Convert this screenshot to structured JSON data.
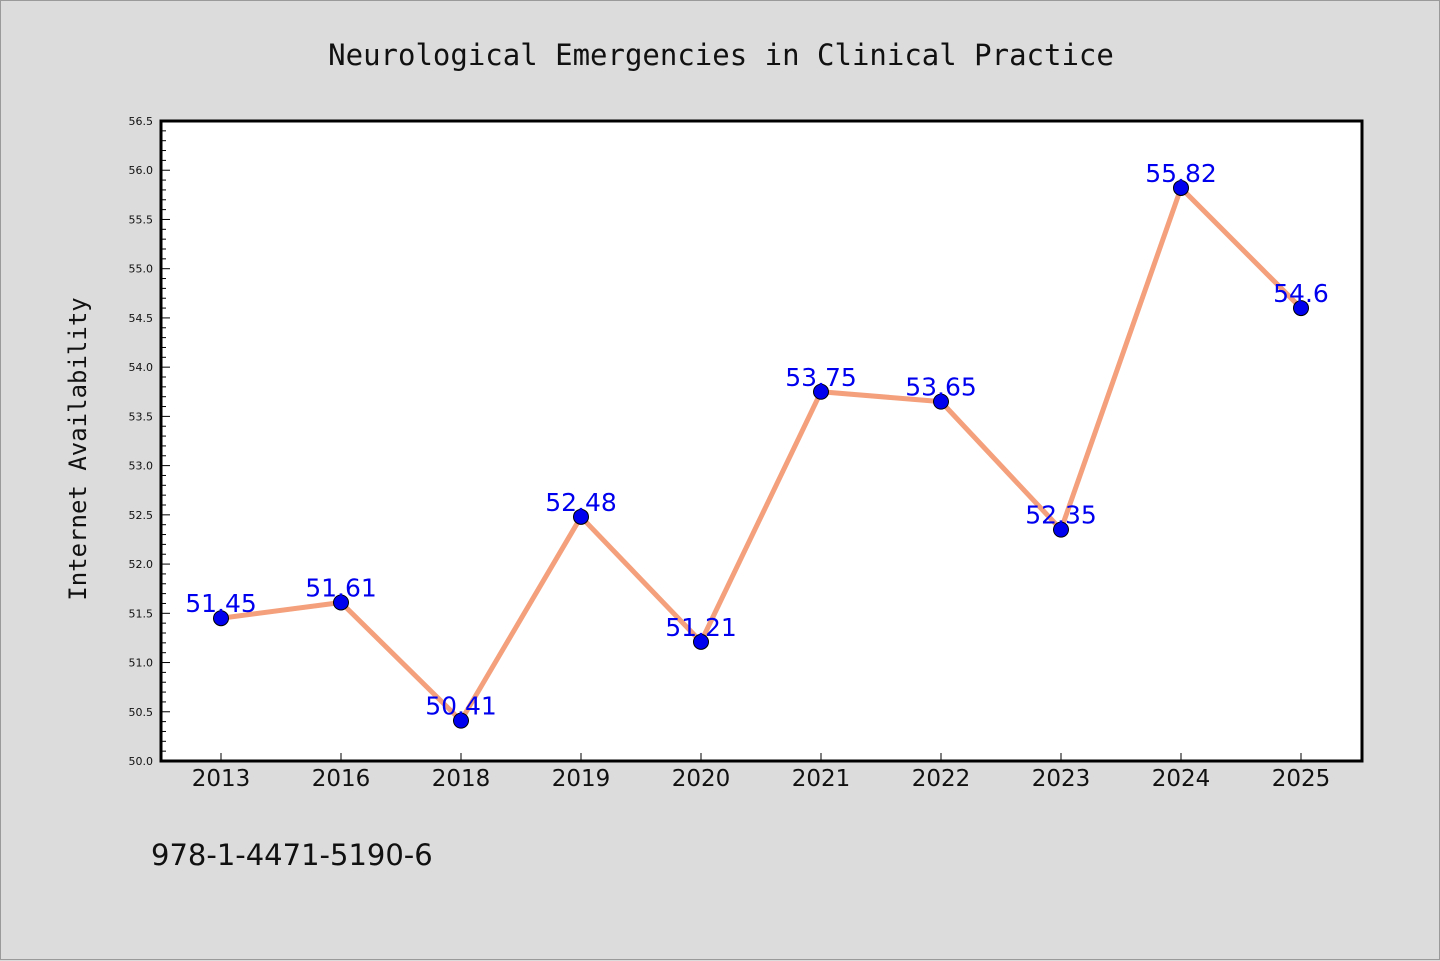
{
  "chart_data": {
    "type": "line",
    "title": "Neurological Emergencies in Clinical Practice",
    "xlabel": "",
    "ylabel": "Internet Availability",
    "categories": [
      "2013",
      "2016",
      "2018",
      "2019",
      "2020",
      "2021",
      "2022",
      "2023",
      "2024",
      "2025"
    ],
    "series": [
      {
        "values": [
          51.45,
          51.61,
          50.41,
          52.48,
          51.21,
          53.75,
          53.65,
          52.35,
          55.82,
          54.6
        ]
      }
    ],
    "data_labels": [
      "51.45",
      "51.61",
      "50.41",
      "52.48",
      "51.21",
      "53.75",
      "53.65",
      "52.35",
      "55.82",
      "54.6"
    ],
    "ylim": [
      50.0,
      56.5
    ],
    "yticks": [
      "50.0",
      "50.5",
      "51.0",
      "51.5",
      "52.0",
      "52.5",
      "53.0",
      "53.5",
      "54.0",
      "54.5",
      "55.0",
      "55.5",
      "56.0",
      "56.5"
    ],
    "grid": false,
    "legend": "none",
    "colors": {
      "line": "#f4a07c",
      "marker": "#0000ee",
      "label": "#0000ee",
      "background": "#dcdcdc",
      "plot_area": "#ffffff"
    }
  },
  "footer": {
    "isbn": "978-1-4471-5190-6"
  }
}
